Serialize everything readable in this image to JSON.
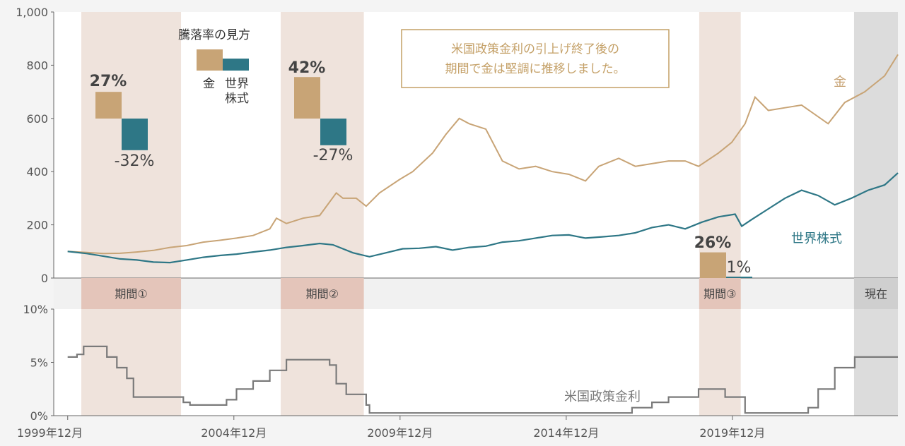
{
  "colors": {
    "gold": "#c8a476",
    "stock": "#2e7786",
    "rate": "#7a7a7a",
    "period_shade": "#efe3dc",
    "period_band": "#e4c5ba",
    "current_shade": "#dcdcdc",
    "note": "#c4a067",
    "background": "#f4f4f4",
    "plot_bg": "#ffffff"
  },
  "chart_data": [
    {
      "type": "line",
      "title": "",
      "ylim": [
        0,
        1000
      ],
      "yticks": [
        "0",
        "200",
        "400",
        "600",
        "800",
        "1,000"
      ],
      "series": [
        {
          "name": "金",
          "x": [
            1999.92,
            2000.5,
            2001,
            2001.5,
            2002,
            2002.5,
            2003,
            2003.5,
            2004,
            2004.5,
            2005,
            2005.5,
            2006,
            2006.2,
            2006.5,
            2007,
            2007.5,
            2008,
            2008.2,
            2008.6,
            2008.9,
            2009.3,
            2009.9,
            2010.3,
            2010.9,
            2011.3,
            2011.7,
            2012,
            2012.5,
            2013,
            2013.5,
            2014,
            2014.5,
            2015,
            2015.5,
            2015.9,
            2016.5,
            2017,
            2017.5,
            2018,
            2018.5,
            2018.9,
            2019.5,
            2019.9,
            2020.3,
            2020.6,
            2021,
            2021.5,
            2022,
            2022.8,
            2023.3,
            2023.9,
            2024.5,
            2024.9
          ],
          "values": [
            100,
            96,
            92,
            93,
            98,
            104,
            115,
            122,
            135,
            142,
            150,
            160,
            185,
            225,
            205,
            225,
            235,
            320,
            300,
            300,
            270,
            320,
            370,
            400,
            470,
            540,
            600,
            580,
            560,
            440,
            410,
            420,
            400,
            390,
            365,
            420,
            450,
            420,
            430,
            440,
            440,
            420,
            470,
            510,
            580,
            680,
            630,
            640,
            650,
            580,
            660,
            700,
            760,
            840
          ]
        },
        {
          "name": "世界株式",
          "x": [
            1999.92,
            2000.5,
            2001,
            2001.5,
            2002,
            2002.5,
            2003,
            2003.5,
            2004,
            2004.5,
            2005,
            2005.5,
            2006,
            2006.5,
            2007,
            2007.5,
            2007.9,
            2008.5,
            2009,
            2009.5,
            2010,
            2010.5,
            2011,
            2011.5,
            2012,
            2012.5,
            2013,
            2013.5,
            2014,
            2014.5,
            2015,
            2015.5,
            2016,
            2016.5,
            2017,
            2017.5,
            2018,
            2018.5,
            2019,
            2019.5,
            2020,
            2020.2,
            2020.5,
            2021,
            2021.5,
            2022,
            2022.5,
            2023,
            2023.5,
            2024,
            2024.5,
            2024.9
          ],
          "values": [
            100,
            92,
            82,
            72,
            68,
            60,
            58,
            68,
            78,
            85,
            90,
            98,
            105,
            115,
            122,
            130,
            125,
            95,
            80,
            95,
            110,
            112,
            118,
            105,
            115,
            120,
            135,
            140,
            150,
            160,
            162,
            150,
            155,
            160,
            170,
            190,
            200,
            185,
            210,
            230,
            240,
            195,
            220,
            260,
            300,
            330,
            310,
            275,
            300,
            330,
            350,
            395
          ]
        }
      ],
      "periods": [
        {
          "label": "期間①",
          "start": 2000.33,
          "end": 2003.33,
          "gold": "27%",
          "stock": "-32%",
          "gold_value": 27,
          "stock_value": -32
        },
        {
          "label": "期間②",
          "start": 2006.33,
          "end": 2008.83,
          "gold": "42%",
          "stock": "-27%",
          "gold_value": 42,
          "stock_value": -27
        },
        {
          "label": "期間③",
          "start": 2018.92,
          "end": 2020.17,
          "gold": "26%",
          "stock": "1%",
          "gold_value": 26,
          "stock_value": 1
        }
      ],
      "current_label": "現在",
      "current_start": 2023.58
    },
    {
      "type": "line",
      "title": "",
      "ylim": [
        0,
        10
      ],
      "yticks": [
        "0%",
        "5%",
        "10%"
      ],
      "series": [
        {
          "name": "米国政策金利",
          "x": [
            1999.92,
            2000.2,
            2000.4,
            2000.9,
            2001.1,
            2001.4,
            2001.7,
            2001.9,
            2002.9,
            2003.4,
            2003.6,
            2004.4,
            2004.7,
            2005,
            2005.5,
            2006,
            2006.5,
            2007.5,
            2007.8,
            2008,
            2008.3,
            2008.9,
            2009,
            2015.9,
            2016.9,
            2017.5,
            2018,
            2018.9,
            2019.5,
            2019.7,
            2020.2,
            2020.3,
            2022,
            2022.2,
            2022.5,
            2023,
            2023.6,
            2024.9
          ],
          "values": [
            5.5,
            5.75,
            6.5,
            6.5,
            5.5,
            4.5,
            3.5,
            1.75,
            1.75,
            1.25,
            1.0,
            1.0,
            1.5,
            2.5,
            3.25,
            4.25,
            5.25,
            5.25,
            4.75,
            3.0,
            2.0,
            1.0,
            0.25,
            0.25,
            0.75,
            1.25,
            1.75,
            2.5,
            2.5,
            1.75,
            1.75,
            0.25,
            0.25,
            0.75,
            2.5,
            4.5,
            5.5,
            5.5
          ]
        }
      ]
    }
  ],
  "x_axis": {
    "range": [
      1999.5,
      2024.9
    ],
    "ticks": [
      {
        "x": 1999.92,
        "label": "1999年12月"
      },
      {
        "x": 2004.92,
        "label": "2004年12月"
      },
      {
        "x": 2009.92,
        "label": "2009年12月"
      },
      {
        "x": 2014.92,
        "label": "2014年12月"
      },
      {
        "x": 2019.92,
        "label": "2019年12月"
      }
    ]
  },
  "legend": {
    "title": "騰落率の見方",
    "gold_label": "金",
    "stock_label_line1": "世界",
    "stock_label_line2": "株式"
  },
  "note": {
    "line1": "米国政策金利の引上げ終了後の",
    "line2": "期間で金は堅調に推移しました。"
  }
}
